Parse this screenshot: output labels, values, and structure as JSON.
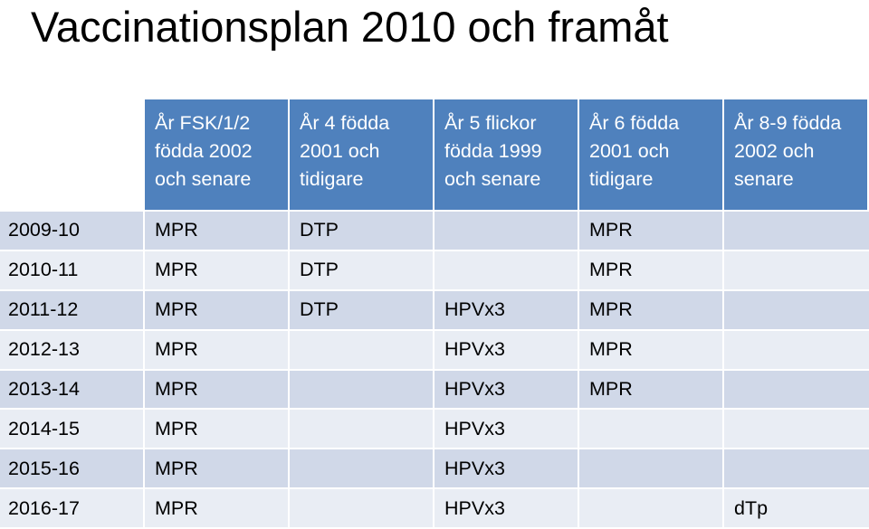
{
  "title": "Vaccinationsplan 2010 och framåt",
  "table": {
    "headers": [
      "",
      "År FSK/1/2\nfödda 2002\noch senare",
      "År 4 födda\n2001 och\ntidigare",
      "År 5 flickor\nfödda 1999\noch senare",
      "År 6 födda\n2001 och\ntidigare",
      "År 8-9 födda\n2002 och\nsenare"
    ],
    "rows": [
      [
        "2009-10",
        "MPR",
        "DTP",
        "",
        "MPR",
        ""
      ],
      [
        "2010-11",
        "MPR",
        "DTP",
        "",
        "MPR",
        ""
      ],
      [
        "2011-12",
        "MPR",
        "DTP",
        "HPVx3",
        "MPR",
        ""
      ],
      [
        "2012-13",
        "MPR",
        "",
        "HPVx3",
        "MPR",
        ""
      ],
      [
        "2013-14",
        "MPR",
        "",
        "HPVx3",
        "MPR",
        ""
      ],
      [
        "2014-15",
        "MPR",
        "",
        "HPVx3",
        "",
        ""
      ],
      [
        "2015-16",
        "MPR",
        "",
        "HPVx3",
        "",
        ""
      ],
      [
        "2016-17",
        "MPR",
        "",
        "HPVx3",
        "",
        "dTp"
      ]
    ]
  },
  "colors": {
    "header_bg": "#4f81bd",
    "row_even_bg": "#d0d8e8",
    "row_odd_bg": "#e9edf4"
  }
}
